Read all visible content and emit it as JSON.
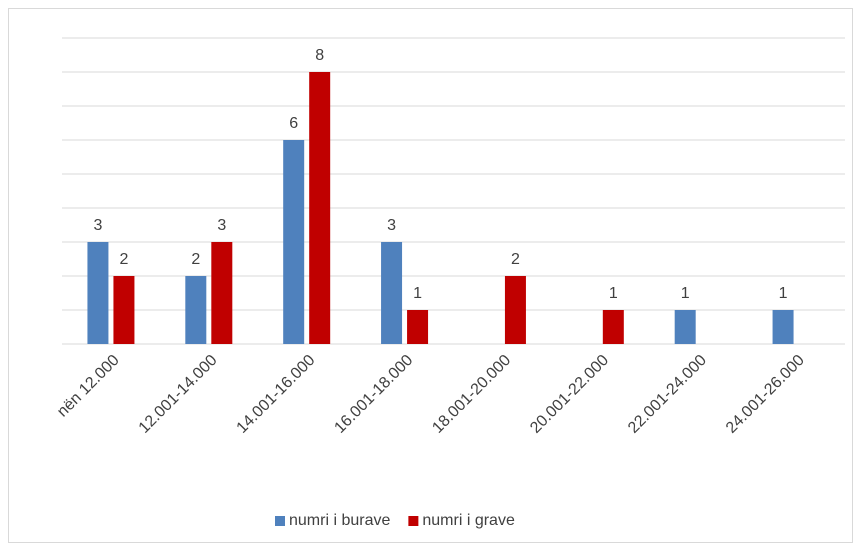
{
  "chart_data": {
    "type": "bar",
    "categories": [
      "nën 12.000",
      "12.001-14.000",
      "14.001-16.000",
      "16.001-18.000",
      "18.001-20.000",
      "20.001-22.000",
      "22.001-24.000",
      "24.001-26.000"
    ],
    "series": [
      {
        "name": "numri i burave",
        "color": "#4f81bd",
        "values": [
          3,
          2,
          6,
          3,
          null,
          null,
          1,
          1
        ]
      },
      {
        "name": "numri i grave",
        "color": "#c00000",
        "values": [
          2,
          3,
          8,
          1,
          2,
          1,
          null,
          null
        ]
      }
    ],
    "ylim": [
      0,
      9
    ],
    "yticks": [
      0,
      1,
      2,
      3,
      4,
      5,
      6,
      7,
      8,
      9
    ],
    "grid": true,
    "legend": "bottom"
  }
}
